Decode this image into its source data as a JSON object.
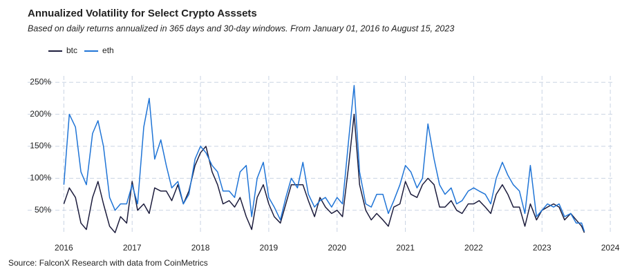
{
  "chart_data": {
    "type": "line",
    "title": "Annualized Volatility for Select Crypto Asssets",
    "subtitle": "Based on daily returns annualized in 365 days and 30-day windows. From January 01, 2016 to August 15, 2023",
    "source": "Source: FalconX Research with data from CoinMetrics",
    "x": [
      2016,
      2016.08,
      2016.17,
      2016.25,
      2016.33,
      2016.42,
      2016.5,
      2016.58,
      2016.67,
      2016.75,
      2016.83,
      2016.92,
      2017,
      2017.08,
      2017.17,
      2017.25,
      2017.33,
      2017.42,
      2017.5,
      2017.58,
      2017.67,
      2017.75,
      2017.83,
      2017.92,
      2018,
      2018.08,
      2018.17,
      2018.25,
      2018.33,
      2018.42,
      2018.5,
      2018.58,
      2018.67,
      2018.75,
      2018.83,
      2018.92,
      2019,
      2019.08,
      2019.17,
      2019.25,
      2019.33,
      2019.42,
      2019.5,
      2019.58,
      2019.67,
      2019.75,
      2019.83,
      2019.92,
      2020,
      2020.08,
      2020.17,
      2020.25,
      2020.33,
      2020.42,
      2020.5,
      2020.58,
      2020.67,
      2020.75,
      2020.83,
      2020.92,
      2021,
      2021.08,
      2021.17,
      2021.25,
      2021.33,
      2021.42,
      2021.5,
      2021.58,
      2021.67,
      2021.75,
      2021.83,
      2021.92,
      2022,
      2022.08,
      2022.17,
      2022.25,
      2022.33,
      2022.42,
      2022.5,
      2022.58,
      2022.67,
      2022.75,
      2022.83,
      2022.92,
      2023,
      2023.08,
      2023.17,
      2023.25,
      2023.33,
      2023.42,
      2023.5,
      2023.58,
      2023.62
    ],
    "series": [
      {
        "name": "btc",
        "color": "#1c1c3c",
        "values": [
          60,
          85,
          70,
          30,
          20,
          70,
          95,
          60,
          25,
          15,
          40,
          30,
          95,
          50,
          60,
          45,
          85,
          80,
          80,
          65,
          90,
          60,
          80,
          120,
          140,
          150,
          110,
          90,
          60,
          65,
          55,
          70,
          40,
          20,
          70,
          90,
          60,
          40,
          30,
          60,
          90,
          90,
          90,
          65,
          40,
          70,
          55,
          45,
          50,
          40,
          120,
          200,
          90,
          50,
          35,
          45,
          35,
          25,
          55,
          60,
          95,
          75,
          70,
          90,
          100,
          90,
          55,
          55,
          65,
          50,
          45,
          60,
          60,
          65,
          55,
          45,
          75,
          90,
          75,
          55,
          55,
          25,
          60,
          35,
          50,
          55,
          60,
          55,
          35,
          45,
          35,
          25,
          15
        ]
      },
      {
        "name": "eth",
        "color": "#1f74d6",
        "values": [
          90,
          200,
          180,
          110,
          90,
          170,
          190,
          150,
          70,
          50,
          60,
          60,
          90,
          60,
          180,
          225,
          130,
          160,
          120,
          85,
          95,
          60,
          75,
          130,
          150,
          140,
          120,
          110,
          80,
          80,
          70,
          110,
          120,
          40,
          100,
          125,
          70,
          55,
          35,
          70,
          100,
          85,
          125,
          75,
          55,
          65,
          70,
          55,
          70,
          60,
          160,
          245,
          110,
          60,
          55,
          75,
          75,
          45,
          65,
          90,
          120,
          110,
          85,
          100,
          185,
          130,
          90,
          75,
          85,
          60,
          65,
          80,
          85,
          80,
          75,
          60,
          100,
          125,
          105,
          90,
          80,
          45,
          120,
          40,
          50,
          60,
          55,
          60,
          40,
          45,
          30,
          30,
          17
        ]
      }
    ],
    "xlim": [
      2015.47,
      2024.07
    ],
    "xticks": [
      2016,
      2017,
      2018,
      2019,
      2020,
      2021,
      2022,
      2023,
      2024
    ],
    "ylim": [
      12,
      260
    ],
    "yticks": [
      {
        "value": 50,
        "label": "50%"
      },
      {
        "value": 100,
        "label": "100%"
      },
      {
        "value": 150,
        "label": "150%"
      },
      {
        "value": 200,
        "label": "200%"
      },
      {
        "value": 250,
        "label": "250%"
      }
    ],
    "grid": true,
    "legend": "top-left"
  }
}
